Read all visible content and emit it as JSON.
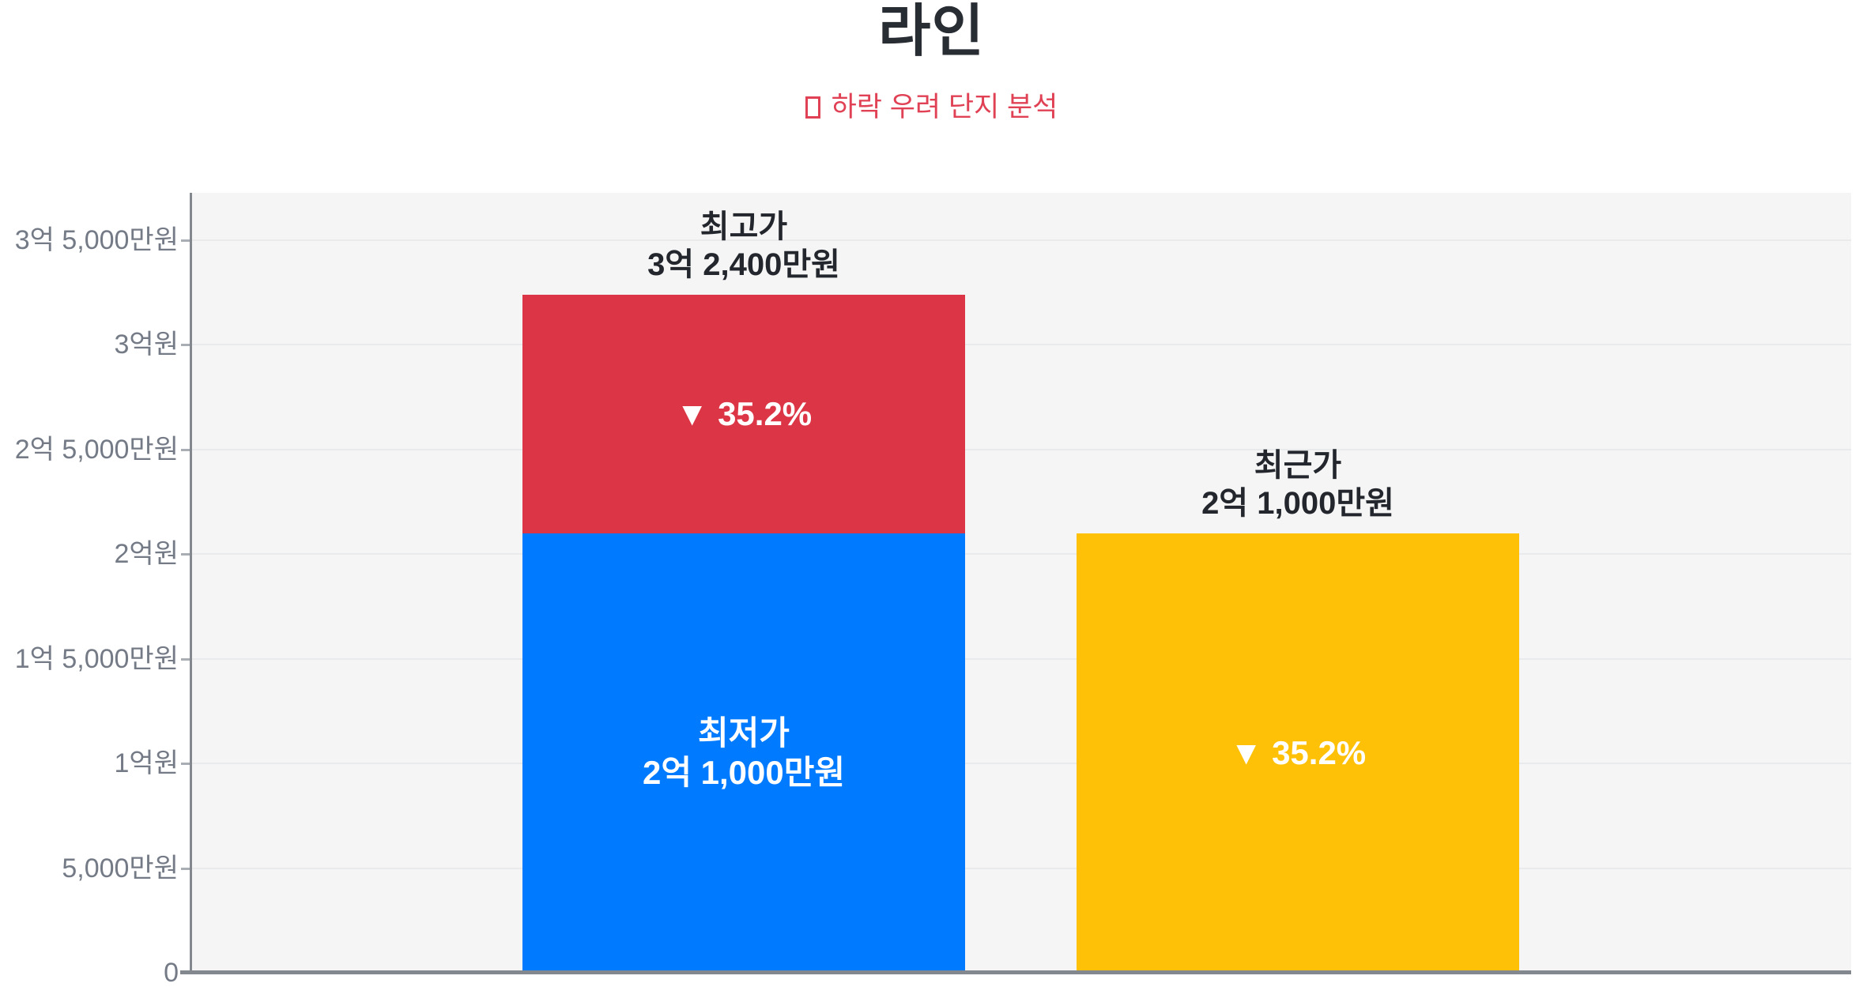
{
  "header": {
    "title": "라인",
    "subtitle": "하락 우려 단지 분석",
    "subtitle_glyph": "□"
  },
  "colors": {
    "lowest_price_blue": "#007bff",
    "drop_range_red": "#dc3545",
    "recent_price_yellow": "#ffc107",
    "subtitle_red": "#e04154",
    "title_text": "#282c33",
    "axis_line": "#83878e",
    "tick_label_gray": "#747b86",
    "plot_background": "#f5f5f5",
    "gridline_gray": "#e9eaec"
  },
  "chart_data": {
    "type": "bar",
    "title": "라인",
    "subtitle": "하락 우려 단지 분석",
    "unit": "만원",
    "grid": true,
    "legend": "none",
    "y_axis": {
      "min": 0,
      "max": 37265,
      "tick_step_manwon": 5000
    },
    "y_ticks": [
      {
        "value": 0,
        "label": "0"
      },
      {
        "value": 5000,
        "label": "5,000만원"
      },
      {
        "value": 10000,
        "label": "1억원"
      },
      {
        "value": 15000,
        "label": "1억 5,000만원"
      },
      {
        "value": 20000,
        "label": "2억원"
      },
      {
        "value": 25000,
        "label": "2억 5,000만원"
      },
      {
        "value": 30000,
        "label": "3억원"
      },
      {
        "value": 35000,
        "label": "3억 5,000만원"
      }
    ],
    "bars": [
      {
        "name": "price-range-bar",
        "top_label_lines": [
          "최고가",
          "3억 2,400만원"
        ],
        "segments": [
          {
            "name": "lowest-price-segment",
            "from": 0,
            "to": 21000,
            "color": "#007bff",
            "text_lines": [
              "최저가",
              "2억 1,000만원"
            ]
          },
          {
            "name": "drop-range-segment",
            "from": 21000,
            "to": 32400,
            "color": "#dc3545",
            "text_lines": [
              "▼ 35.2%"
            ]
          }
        ]
      },
      {
        "name": "recent-price-bar",
        "top_label_lines": [
          "최근가",
          "2억 1,000만원"
        ],
        "segments": [
          {
            "name": "recent-price-segment",
            "from": 0,
            "to": 21000,
            "color": "#ffc107",
            "text_lines": [
              "▼ 35.2%"
            ]
          }
        ]
      }
    ],
    "values_summary": {
      "highest_price_manwon": 32400,
      "lowest_price_manwon": 21000,
      "recent_price_manwon": 21000,
      "drop_percent": 35.2
    }
  }
}
